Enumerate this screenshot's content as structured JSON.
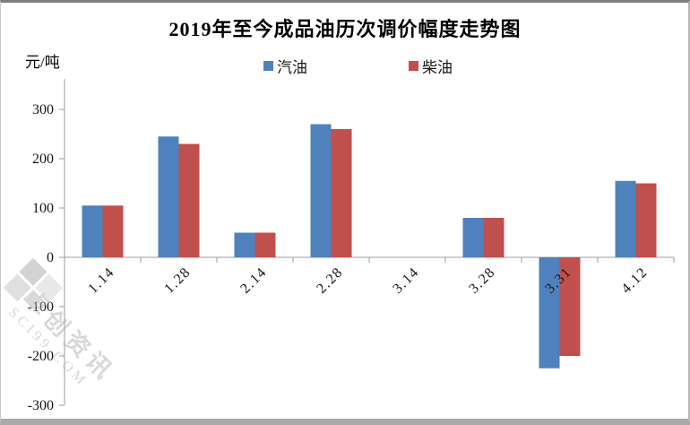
{
  "chart_data": {
    "type": "bar",
    "title": "2019年至今成品油历次调价幅度走势图",
    "ylabel": "元/吨",
    "xlabel": "",
    "categories": [
      "1.14",
      "1.28",
      "2.14",
      "2.28",
      "3.14",
      "3.28",
      "3.31",
      "4.12"
    ],
    "series": [
      {
        "key": "gasoline",
        "name": "汽油",
        "color": "#4F81BD",
        "values": [
          105,
          245,
          50,
          270,
          0,
          80,
          -225,
          155
        ]
      },
      {
        "key": "diesel",
        "name": "柴油",
        "color": "#C0504D",
        "values": [
          105,
          230,
          50,
          260,
          0,
          80,
          -200,
          150
        ]
      }
    ],
    "ylim": [
      -300,
      300
    ],
    "ytick_step": 100,
    "grid": false,
    "legend_position": "top-center",
    "xlabel_rotation": -45,
    "axis_color": "#9c9c9c",
    "tick_label_color": "#141414"
  },
  "watermark": {
    "line1": "卓创资讯",
    "line2": "SCI99.COM"
  }
}
